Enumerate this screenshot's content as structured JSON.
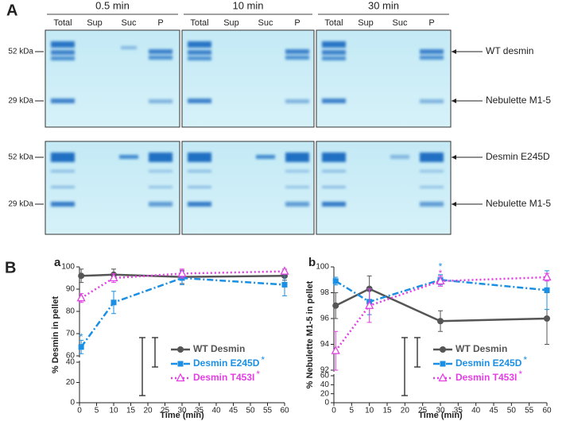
{
  "gels": {
    "panel": "A",
    "time_headers": [
      "0.5 min",
      "10 min",
      "30 min"
    ],
    "lane_labels": [
      "Total",
      "Sup",
      "Suc",
      "P"
    ],
    "marker_labels": [
      "52 kDa",
      "29 kDa"
    ],
    "band_labels": [
      "WT desmin",
      "Nebulette M1-5",
      "Desmin E245D",
      "Nebulette M1-5"
    ]
  },
  "figure_b_label": "B",
  "chart_data": [
    {
      "type": "line",
      "panel": "a",
      "xlabel": "Time (min)",
      "ylabel": "% Desmin in pellet",
      "x": [
        0.5,
        10,
        30,
        60
      ],
      "xlim": [
        0,
        60
      ],
      "xticks": [
        0,
        5,
        10,
        15,
        20,
        25,
        30,
        35,
        40,
        45,
        50,
        55,
        60
      ],
      "ylim": [
        60,
        100
      ],
      "yticks": [
        60,
        70,
        80,
        90,
        100
      ],
      "ylim_lower": [
        0,
        40
      ],
      "yticks_lower": [
        0,
        20,
        40
      ],
      "series": [
        {
          "name": "WT Desmin",
          "color": "#555555",
          "values": [
            96,
            96.5,
            95.5,
            96
          ],
          "errors": [
            3,
            2.5,
            3,
            2
          ]
        },
        {
          "name": "Desmin E245D",
          "significance_mark": "*",
          "color": "#1a8fe3",
          "values": [
            64,
            84,
            95,
            92
          ],
          "errors": [
            3,
            5,
            3,
            5
          ]
        },
        {
          "name": "Desmin T453I",
          "significance_mark": "*",
          "color": "#e33ee3",
          "values": [
            86,
            95,
            97,
            98
          ],
          "errors": [
            2,
            2,
            2,
            1
          ]
        }
      ]
    },
    {
      "type": "line",
      "panel": "b",
      "xlabel": "Time (min)",
      "ylabel": "% Nebulette M1-5 in pellet",
      "x": [
        0.5,
        10,
        30,
        60
      ],
      "xlim": [
        0,
        60
      ],
      "xticks": [
        0,
        5,
        10,
        15,
        20,
        25,
        30,
        35,
        40,
        45,
        50,
        55,
        60
      ],
      "ylim": [
        92,
        100
      ],
      "yticks": [
        92,
        94,
        96,
        98,
        100
      ],
      "ylim_lower": [
        0,
        60
      ],
      "yticks_lower": [
        0,
        20,
        40,
        60
      ],
      "series": [
        {
          "name": "WT Desmin",
          "color": "#555555",
          "values": [
            97,
            98.3,
            95.8,
            96
          ],
          "errors": [
            1,
            1,
            0.8,
            2
          ]
        },
        {
          "name": "Desmin E245D",
          "significance_mark": "*",
          "color": "#1a8fe3",
          "values": [
            98.9,
            97.3,
            99,
            98.2
          ],
          "errors": [
            0.3,
            1,
            0.4,
            1.5
          ]
        },
        {
          "name": "Desmin T453I",
          "significance_mark": "*",
          "color": "#e33ee3",
          "values": [
            93.5,
            97,
            98.9,
            99.2
          ],
          "errors": [
            1.5,
            1.3,
            0.4,
            0.3
          ]
        }
      ]
    }
  ]
}
